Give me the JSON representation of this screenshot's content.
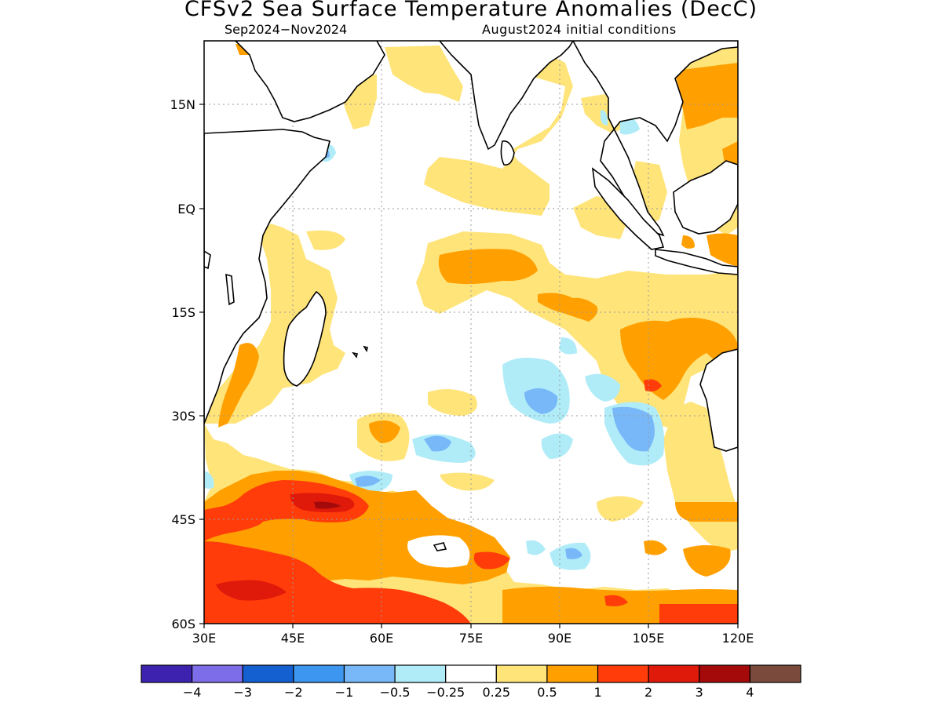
{
  "title": "CFSv2 Sea Surface Temperature Anomalies (DecC)",
  "period": "Sep2024−Nov2024",
  "initial_conditions": "August2024 initial conditions",
  "map": {
    "lon_range": [
      30,
      120
    ],
    "lat_range": [
      -60,
      24
    ],
    "lat_ticks": [
      "15N",
      "EQ",
      "15S",
      "30S",
      "45S",
      "60S"
    ],
    "lon_ticks": [
      "30E",
      "45E",
      "60E",
      "75E",
      "90E",
      "105E",
      "120E"
    ],
    "grid": "dotted"
  },
  "colorbar": {
    "colors": [
      "#3d22b0",
      "#7e6de8",
      "#1560d0",
      "#3d96f0",
      "#78b8f8",
      "#b0ecf8",
      "#ffffff",
      "#ffe47a",
      "#ffa000",
      "#ff3c0a",
      "#e01a0a",
      "#a50a0a",
      "#7a4a3c"
    ],
    "labels": [
      "−4",
      "−3",
      "−2",
      "−1",
      "−0.5",
      "−0.25",
      "0.25",
      "0.5",
      "1",
      "2",
      "3",
      "4"
    ]
  }
}
